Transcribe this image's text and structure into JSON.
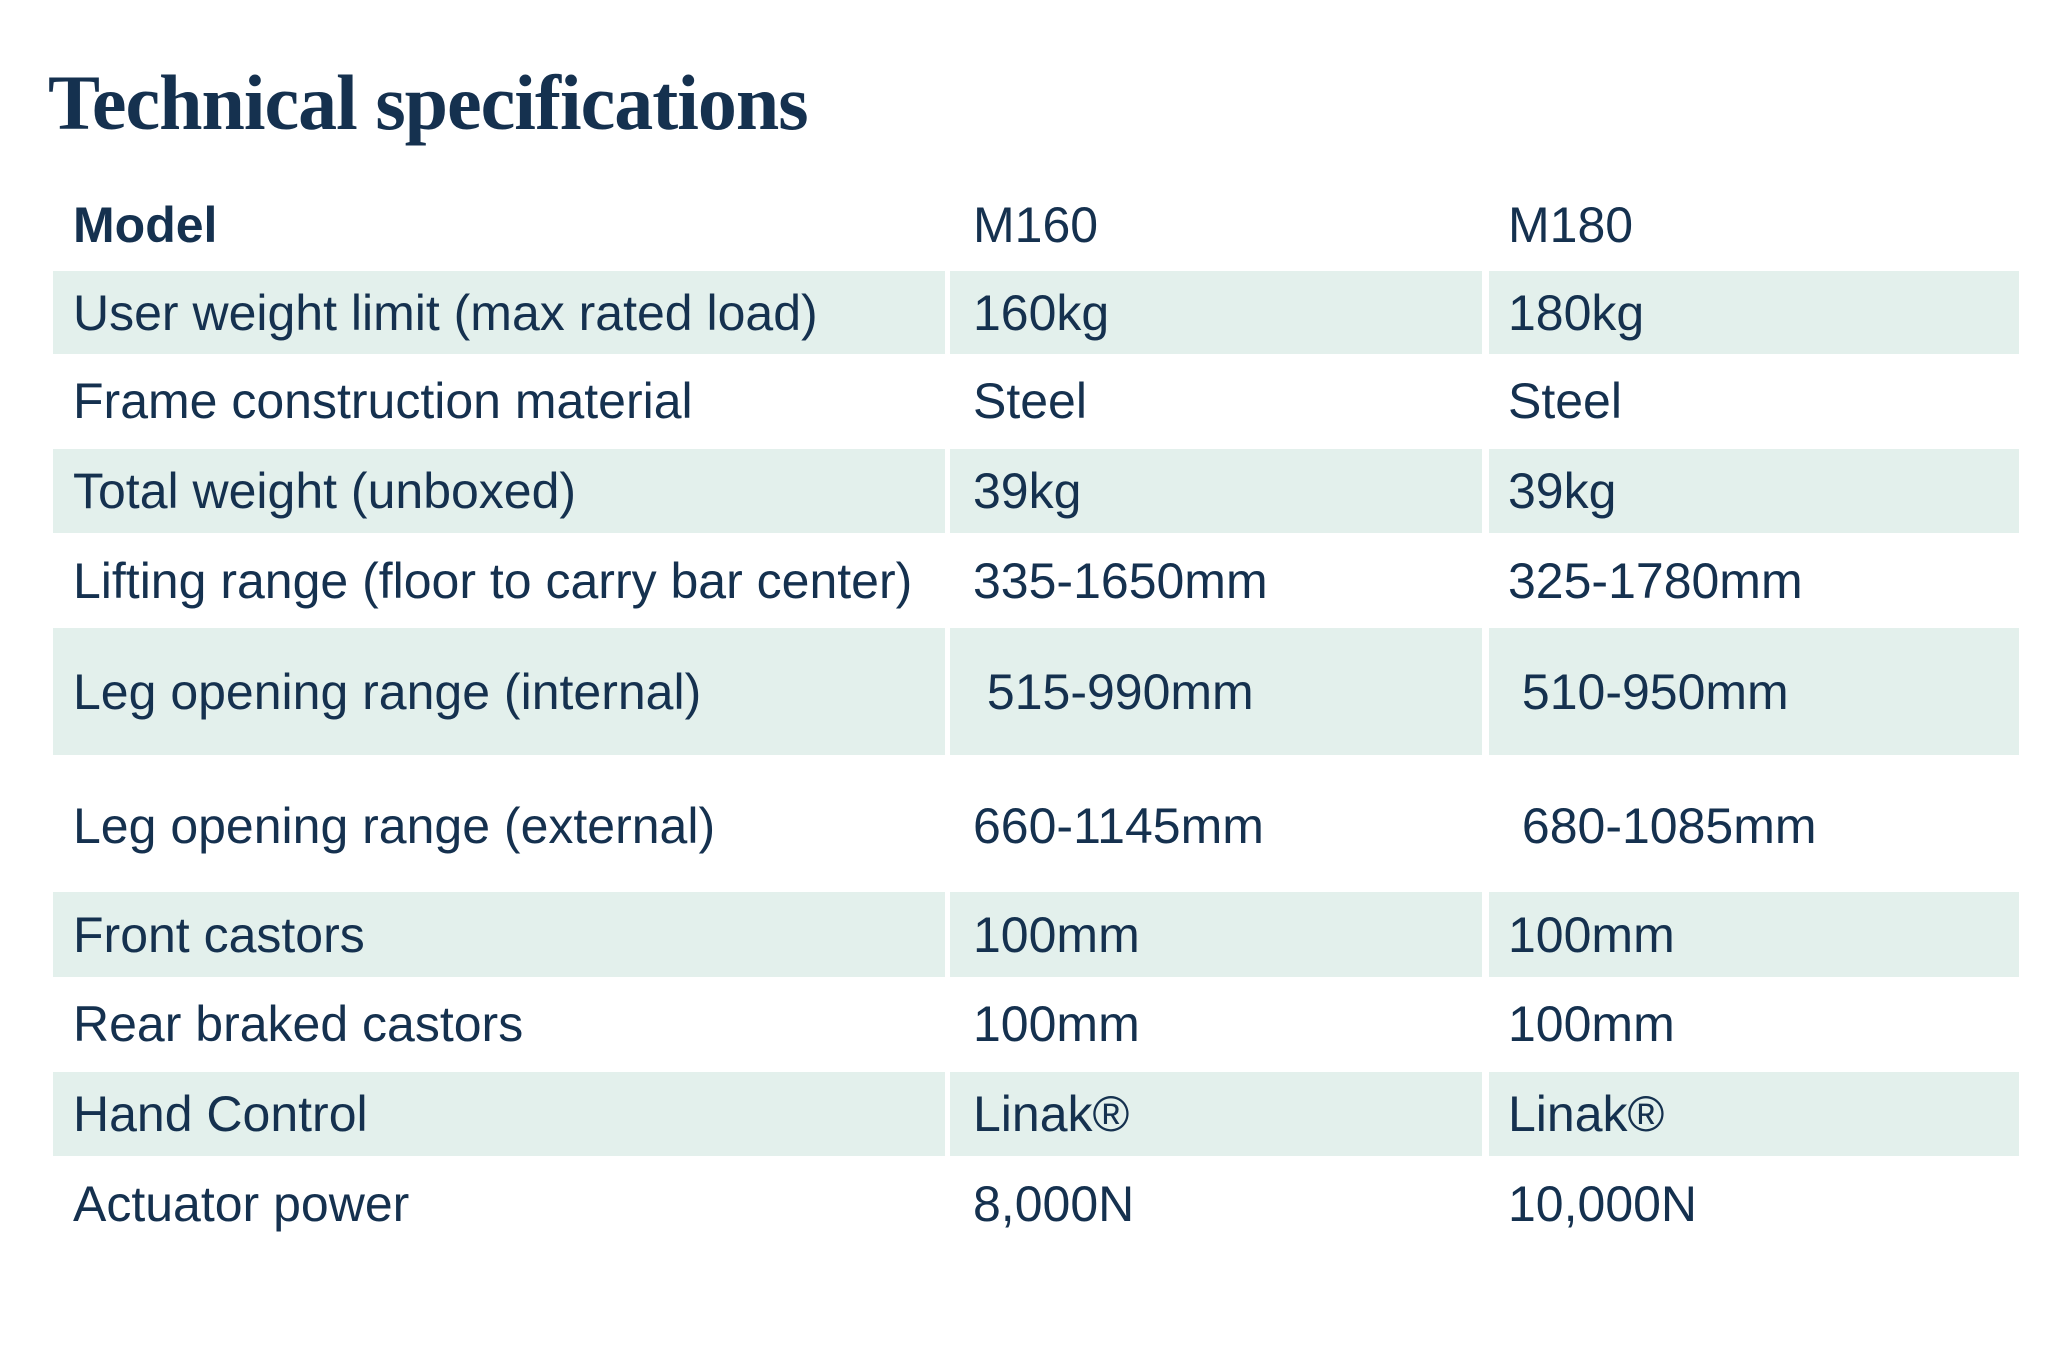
{
  "title": "Technical specifications",
  "table": {
    "header": [
      "Model",
      "M160",
      "M180"
    ],
    "rows": [
      [
        "User weight limit (max rated load)",
        "160kg",
        "180kg"
      ],
      [
        "Frame construction material",
        "Steel",
        "Steel"
      ],
      [
        "Total weight (unboxed)",
        "39kg",
        "39kg"
      ],
      [
        "Lifting range (floor to carry bar center)",
        "335-1650mm",
        "325-1780mm"
      ],
      [
        "Leg opening range (internal)",
        " 515-990mm",
        " 510-950mm"
      ],
      [
        "Leg opening range (external)",
        "660-1145mm",
        " 680-1085mm"
      ],
      [
        "Front castors",
        "100mm",
        "100mm"
      ],
      [
        "Rear braked castors",
        "100mm",
        "100mm"
      ],
      [
        "Hand Control",
        "Linak®",
        "Linak®"
      ],
      [
        "Actuator power",
        "8,000N",
        "10,000N"
      ]
    ]
  }
}
